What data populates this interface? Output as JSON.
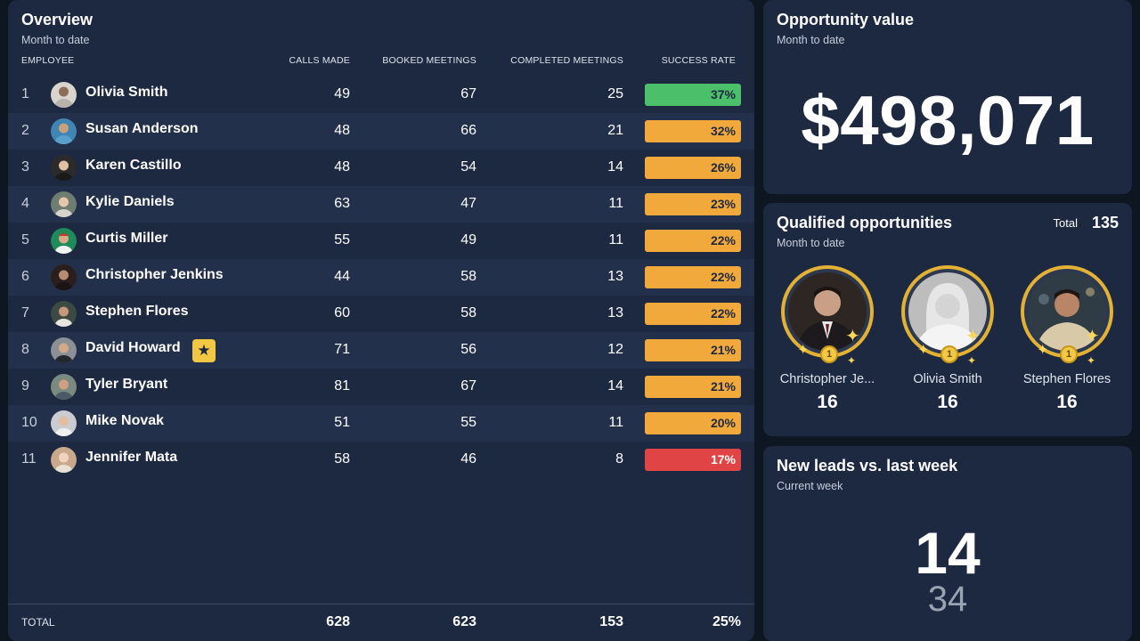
{
  "overview": {
    "title": "Overview",
    "subtitle": "Month to date",
    "headers": {
      "employee": "EMPLOYEE",
      "calls": "CALLS MADE",
      "booked": "BOOKED MEETINGS",
      "completed": "COMPLETED MEETINGS",
      "rate": "SUCCESS RATE"
    },
    "rows": [
      {
        "rank": "1",
        "name": "Olivia Smith",
        "calls": "49",
        "booked": "67",
        "completed": "25",
        "rate": "37%",
        "rate_status": "green"
      },
      {
        "rank": "2",
        "name": "Susan Anderson",
        "calls": "48",
        "booked": "66",
        "completed": "21",
        "rate": "32%",
        "rate_status": "orange"
      },
      {
        "rank": "3",
        "name": "Karen Castillo",
        "calls": "48",
        "booked": "54",
        "completed": "14",
        "rate": "26%",
        "rate_status": "orange"
      },
      {
        "rank": "4",
        "name": "Kylie Daniels",
        "calls": "63",
        "booked": "47",
        "completed": "11",
        "rate": "23%",
        "rate_status": "orange"
      },
      {
        "rank": "5",
        "name": "Curtis Miller",
        "calls": "55",
        "booked": "49",
        "completed": "11",
        "rate": "22%",
        "rate_status": "orange"
      },
      {
        "rank": "6",
        "name": "Christopher Jenkins",
        "calls": "44",
        "booked": "58",
        "completed": "13",
        "rate": "22%",
        "rate_status": "orange"
      },
      {
        "rank": "7",
        "name": "Stephen Flores",
        "calls": "60",
        "booked": "58",
        "completed": "13",
        "rate": "22%",
        "rate_status": "orange"
      },
      {
        "rank": "8",
        "name": "David Howard",
        "calls": "71",
        "booked": "56",
        "completed": "12",
        "rate": "21%",
        "rate_status": "orange",
        "badge_icon": "star-icon"
      },
      {
        "rank": "9",
        "name": "Tyler Bryant",
        "calls": "81",
        "booked": "67",
        "completed": "14",
        "rate": "21%",
        "rate_status": "orange"
      },
      {
        "rank": "10",
        "name": "Mike Novak",
        "calls": "51",
        "booked": "55",
        "completed": "11",
        "rate": "20%",
        "rate_status": "orange"
      },
      {
        "rank": "11",
        "name": "Jennifer Mata",
        "calls": "58",
        "booked": "46",
        "completed": "8",
        "rate": "17%",
        "rate_status": "red"
      }
    ],
    "totals": {
      "label": "TOTAL",
      "calls": "628",
      "booked": "623",
      "completed": "153",
      "rate": "25%"
    }
  },
  "opportunity": {
    "title": "Opportunity value",
    "subtitle": "Month to date",
    "value": "$498,071"
  },
  "qualified": {
    "title": "Qualified opportunities",
    "subtitle": "Month to date",
    "total_label": "Total",
    "total_value": "135",
    "leaders": [
      {
        "name": "Christopher Je...",
        "value": "16",
        "medal": "1"
      },
      {
        "name": "Olivia Smith",
        "value": "16",
        "medal": "1"
      },
      {
        "name": "Stephen Flores",
        "value": "16",
        "medal": "1"
      }
    ]
  },
  "leads": {
    "title": "New leads vs. last week",
    "subtitle": "Current week",
    "current": "14",
    "last_week": "34"
  },
  "colors": {
    "background": "#0e1622",
    "panel": "#1d2841",
    "row_alt": "#22304b",
    "green": "#4cbf6b",
    "orange": "#f2a93b",
    "red": "#e04444",
    "gold": "#e3b234"
  }
}
